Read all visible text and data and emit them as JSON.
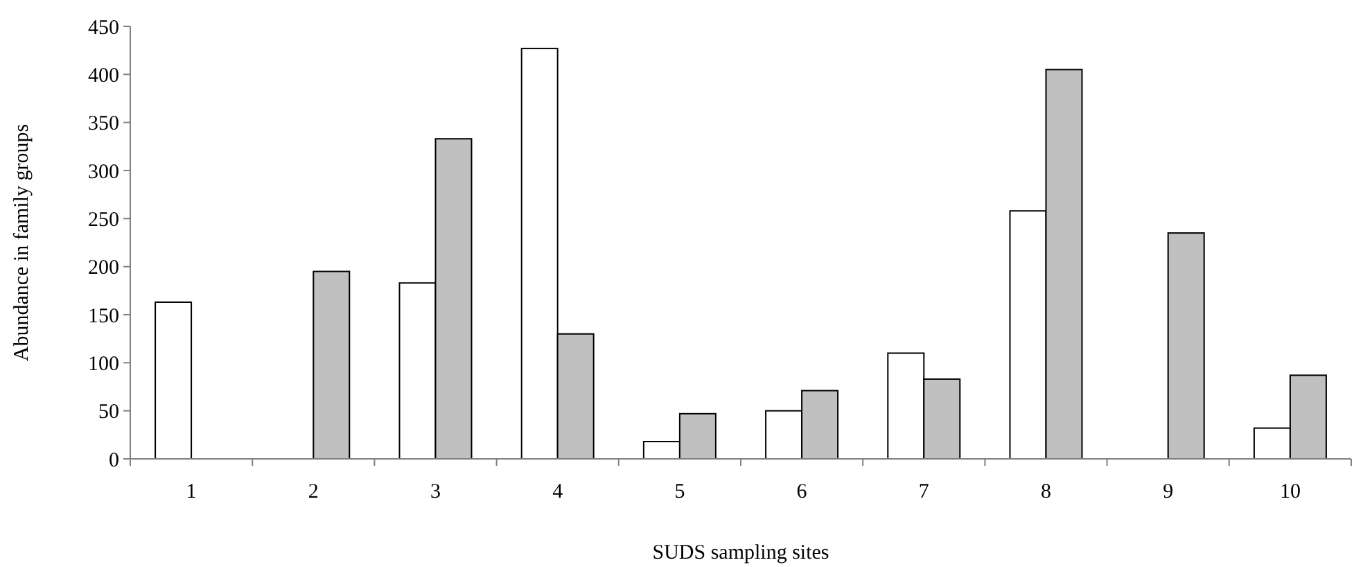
{
  "chart_data": {
    "type": "bar",
    "xlabel": "SUDS sampling sites",
    "ylabel": "Abundance in family groups",
    "categories": [
      "1",
      "2",
      "3",
      "4",
      "5",
      "6",
      "7",
      "8",
      "9",
      "10"
    ],
    "series": [
      {
        "color": "#ffffff",
        "values": [
          163,
          null,
          183,
          427,
          18,
          50,
          110,
          258,
          null,
          32
        ]
      },
      {
        "color": "#c0c0c0",
        "values": [
          null,
          195,
          333,
          130,
          47,
          71,
          83,
          405,
          235,
          87
        ]
      }
    ],
    "ylim": [
      0,
      450
    ],
    "yticks": [
      0,
      50,
      100,
      150,
      200,
      250,
      300,
      350,
      400,
      450
    ],
    "grid": false
  }
}
